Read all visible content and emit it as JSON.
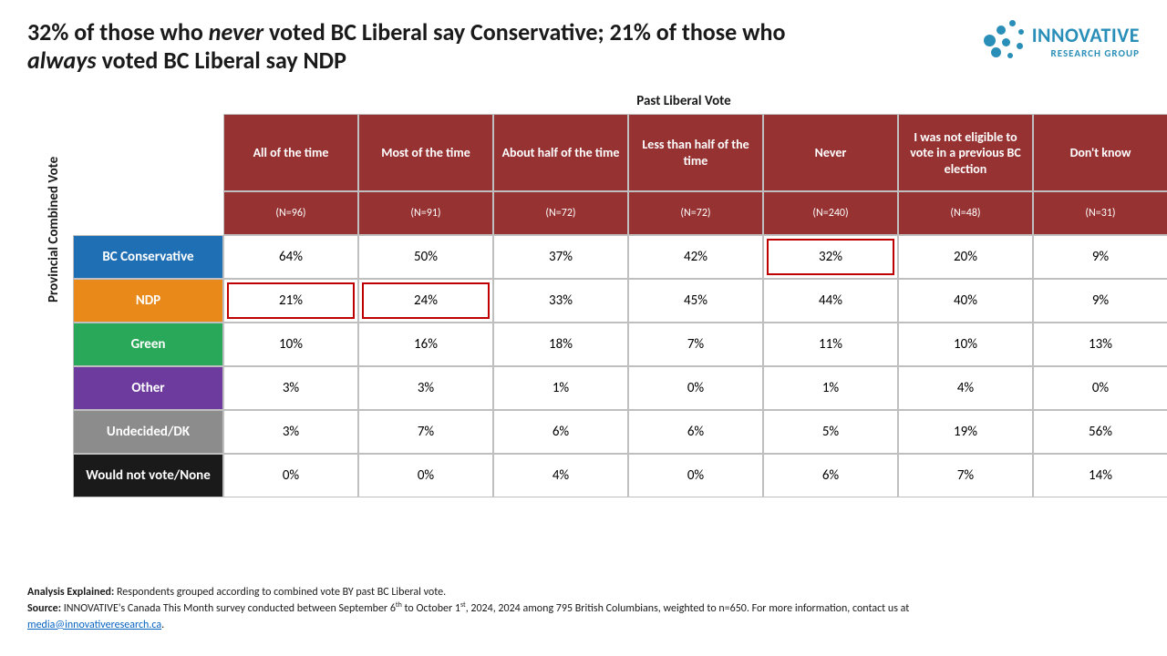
{
  "title_html": "32% of those who <em>never</em> voted BC Liberal say Conservative; 21% of those who <em>always</em> voted BC Liberal say NDP",
  "logo_brand": "INNOVATIVE",
  "logo_sub": "RESEARCH GROUP",
  "logo_color": "#2a8fb8",
  "column_axis_label": "Past Liberal Vote",
  "row_axis_label": "Provincial Combined Vote",
  "header_bg": "#963232",
  "columns": [
    {
      "label": "All of the time",
      "n": "(N=96)"
    },
    {
      "label": "Most of the time",
      "n": "(N=91)"
    },
    {
      "label": "About half of the time",
      "n": "(N=72)"
    },
    {
      "label": "Less than half of the time",
      "n": "(N=72)"
    },
    {
      "label": "Never",
      "n": "(N=240)"
    },
    {
      "label": "I was not eligible to vote in a previous BC election",
      "n": "(N=48)"
    },
    {
      "label": "Don't know",
      "n": "(N=31)"
    }
  ],
  "rows": [
    {
      "label": "BC Conservative",
      "color": "#1f6fb5",
      "cells": [
        "64%",
        "50%",
        "37%",
        "42%",
        "32%",
        "20%",
        "9%"
      ]
    },
    {
      "label": "NDP",
      "color": "#e8891a",
      "cells": [
        "21%",
        "24%",
        "33%",
        "45%",
        "44%",
        "40%",
        "9%"
      ]
    },
    {
      "label": "Green",
      "color": "#2aa85a",
      "cells": [
        "10%",
        "16%",
        "18%",
        "7%",
        "11%",
        "10%",
        "13%"
      ]
    },
    {
      "label": "Other",
      "color": "#6d3b9e",
      "cells": [
        "3%",
        "3%",
        "1%",
        "0%",
        "1%",
        "4%",
        "0%"
      ]
    },
    {
      "label": "Undecided/DK",
      "color": "#8c8c8c",
      "cells": [
        "3%",
        "7%",
        "6%",
        "6%",
        "5%",
        "19%",
        "56%"
      ]
    },
    {
      "label": "Would not vote/None",
      "color": "#1a1a1a",
      "cells": [
        "0%",
        "0%",
        "4%",
        "0%",
        "6%",
        "7%",
        "14%"
      ]
    }
  ],
  "highlights": [
    {
      "r": 0,
      "c": 4
    },
    {
      "r": 1,
      "c": 0
    },
    {
      "r": 1,
      "c": 1
    }
  ],
  "footer_analysis_label": "Analysis Explained:",
  "footer_analysis": " Respondents grouped according to combined vote BY past BC Liberal vote.",
  "footer_source_label": "Source:",
  "footer_source": " INNOVATIVE's Canada This Month survey conducted between September 6",
  "footer_source2": " to October 1",
  "footer_source3": ", 2024, 2024 among 795 British Columbians, weighted to n=650. For more information, contact us at ",
  "footer_email": "media@innovativeresearch.ca",
  "cell_border": "#bfbfbf",
  "cell_bg": "#ffffff"
}
